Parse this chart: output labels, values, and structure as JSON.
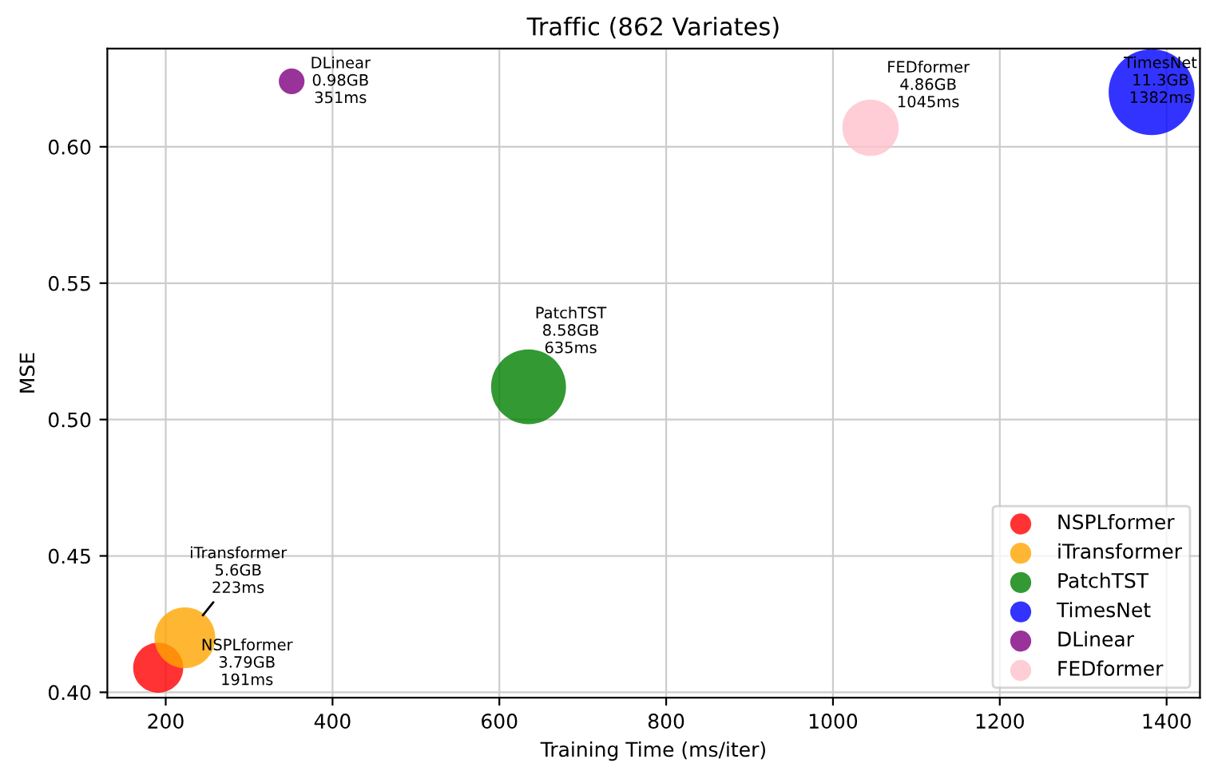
{
  "chart_data": {
    "type": "bubble",
    "title": "Traffic (862 Variates)",
    "xlabel": "Training Time (ms/iter)",
    "ylabel": "MSE",
    "xlim": [
      130,
      1440
    ],
    "xticks": [
      200,
      400,
      600,
      800,
      1000,
      1200,
      1400
    ],
    "ylim": [
      0.398,
      0.636
    ],
    "yticks": [
      {
        "value": 0.4,
        "label": "0.40"
      },
      0.45,
      {
        "value": 0.5,
        "label": "0.50"
      },
      0.55,
      {
        "value": 0.6,
        "label": "0.60"
      }
    ],
    "grid": true,
    "legend": "bottom right",
    "series": [
      {
        "name": "NSPLformer",
        "color": "#ff0000",
        "x": [
          191
        ],
        "values": [
          0.409
        ],
        "sizes": [
          0.34
        ]
      },
      {
        "name": "iTransformer",
        "color": "#ffa500",
        "x": [
          223
        ],
        "values": [
          0.42
        ],
        "sizes": [
          0.5
        ]
      },
      {
        "name": "PatchTST",
        "color": "#008000",
        "x": [
          635
        ],
        "values": [
          0.512
        ],
        "sizes": [
          0.76
        ]
      },
      {
        "name": "TimesNet",
        "color": "#0000ff",
        "x": [
          1382
        ],
        "values": [
          0.62
        ],
        "sizes": [
          1
        ]
      },
      {
        "name": "DLinear",
        "color": "#800080",
        "x": [
          351
        ],
        "values": [
          0.624
        ],
        "sizes": [
          0.09
        ]
      },
      {
        "name": "FEDformer",
        "color": "#ffc0cb",
        "x": [
          1045
        ],
        "values": [
          0.607
        ],
        "sizes": [
          0.43
        ]
      }
    ],
    "annotations": [
      {
        "text": "NSPLformer\n3.79GB\n191ms",
        "x": 191,
        "y": 0.409
      },
      {
        "text": "iTransformer\n5.6GB\n223ms",
        "x": 223,
        "y": 0.42
      },
      {
        "text": "PatchTST\n8.58GB\n635ms",
        "x": 635,
        "y": 0.512
      },
      {
        "text": "TimesNet\n11.3GB\n1382ms",
        "x": 1382,
        "y": 0.62
      },
      {
        "text": "DLinear\n0.98GB\n351ms",
        "x": 351,
        "y": 0.624
      },
      {
        "text": "FEDformer\n4.86GB\n1045ms",
        "x": 1045,
        "y": 0.607
      }
    ]
  }
}
